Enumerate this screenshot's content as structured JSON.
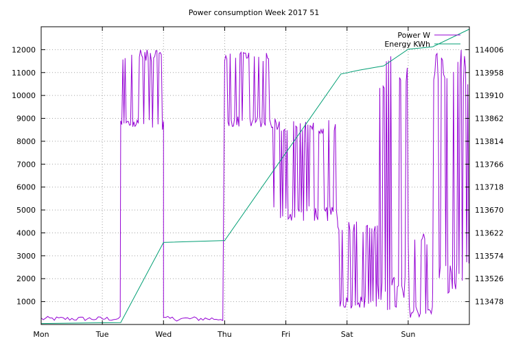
{
  "chart_data": {
    "type": "line",
    "title": "Power consumption Week 2017 51",
    "xlabel": "",
    "ylabel": "",
    "grid": true,
    "legend_position": "top-right",
    "x_ticks": [
      "Mon",
      "Tue",
      "Wed",
      "Thu",
      "Fri",
      "Sat",
      "Sun"
    ],
    "xlim": [
      0,
      7
    ],
    "ylim_left": [
      0,
      13000
    ],
    "ylim_right": [
      113430,
      114054
    ],
    "y_ticks_left": [
      1000,
      2000,
      3000,
      4000,
      5000,
      6000,
      7000,
      8000,
      9000,
      10000,
      11000,
      12000
    ],
    "y_ticks_right": [
      113478,
      113526,
      113574,
      113622,
      113670,
      113718,
      113766,
      113814,
      113862,
      113910,
      113958,
      114006
    ],
    "colors": {
      "power": "#9400d3",
      "energy": "#009e73",
      "grid": "#a0a0a0"
    },
    "series": [
      {
        "name": "Power W",
        "axis": "left",
        "style": "spiky",
        "segments": [
          {
            "x_start": 0.0,
            "x_end": 1.3,
            "low": 150,
            "high": 350
          },
          {
            "x_start": 1.3,
            "x_end": 2.0,
            "low": 8500,
            "high": 12000
          },
          {
            "x_start": 2.0,
            "x_end": 3.0,
            "low": 150,
            "high": 350
          },
          {
            "x_start": 3.0,
            "x_end": 3.75,
            "low": 8600,
            "high": 12000
          },
          {
            "x_start": 3.75,
            "x_end": 4.85,
            "low": 4500,
            "high": 9000
          },
          {
            "x_start": 4.85,
            "x_end": 5.5,
            "low": 700,
            "high": 4500
          },
          {
            "x_start": 5.5,
            "x_end": 6.0,
            "low": 400,
            "high": 12000
          },
          {
            "x_start": 6.0,
            "x_end": 6.4,
            "low": 300,
            "high": 4000
          },
          {
            "x_start": 6.4,
            "x_end": 7.0,
            "low": 1100,
            "high": 12000
          }
        ]
      },
      {
        "name": "Energy KWh",
        "axis": "right",
        "x": [
          0.0,
          1.3,
          2.0,
          3.0,
          4.9,
          5.2,
          5.6,
          6.0,
          6.4,
          7.0
        ],
        "values": [
          113432,
          113434,
          113602,
          113606,
          113955,
          113963,
          113972,
          114007,
          114012,
          114049
        ]
      }
    ]
  }
}
